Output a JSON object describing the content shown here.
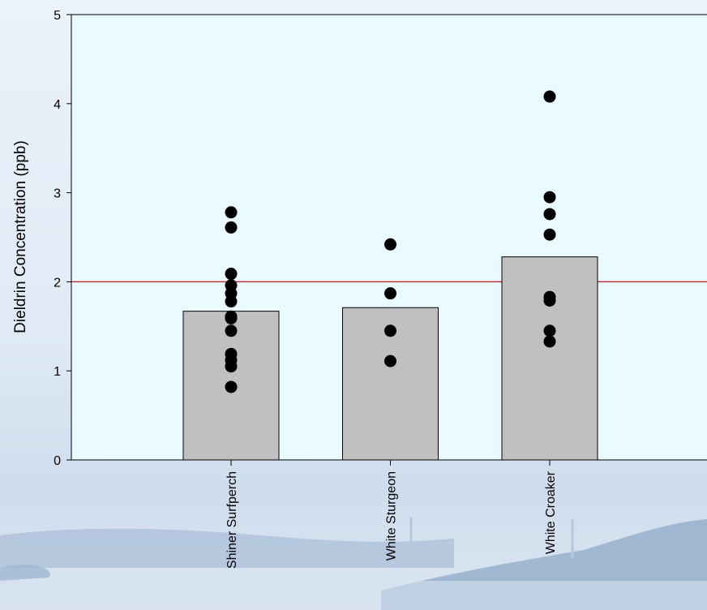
{
  "chart_data": {
    "type": "bar",
    "title": "",
    "xlabel": "",
    "ylabel": "Dieldrin Concentration (ppb)",
    "ylim": [
      0,
      5
    ],
    "yticks": [
      0,
      1,
      2,
      3,
      4,
      5
    ],
    "grid": false,
    "legend": "none",
    "categories": [
      "Shiner Surfperch",
      "White Sturgeon",
      "White Croaker"
    ],
    "values": [
      1.67,
      1.71,
      2.28
    ],
    "points": [
      [
        2.78,
        2.61,
        2.09,
        1.96,
        1.87,
        1.78,
        1.61,
        1.59,
        1.45,
        1.19,
        1.12,
        1.05,
        0.82
      ],
      [
        2.42,
        1.87,
        1.45,
        1.11
      ],
      [
        4.08,
        2.95,
        2.76,
        2.53,
        1.83,
        1.79,
        1.45,
        1.33
      ]
    ],
    "reference_line": 2,
    "colors": {
      "plot_background": "#eafbff",
      "bar_fill": "#c0c0c0",
      "bar_stroke": "#000000",
      "point": "#000000",
      "reference_line": "#e01010"
    }
  }
}
